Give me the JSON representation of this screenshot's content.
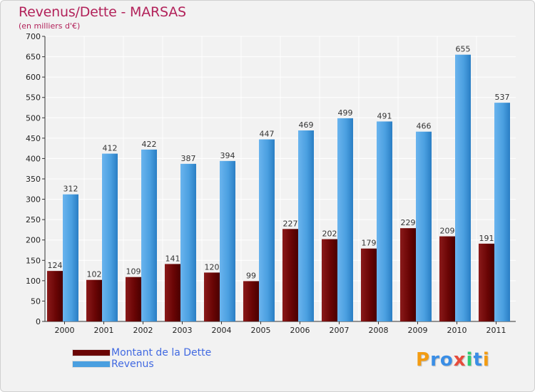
{
  "header": {
    "title": "Revenus/Dette - MARSAS",
    "subtitle": "(en milliers d'€)"
  },
  "chart_data": {
    "type": "bar",
    "title": "Revenus/Dette - MARSAS",
    "subtitle": "(en milliers d'€)",
    "categories": [
      "2000",
      "2001",
      "2002",
      "2003",
      "2004",
      "2005",
      "2006",
      "2007",
      "2008",
      "2009",
      "2010",
      "2011"
    ],
    "series": [
      {
        "name": "Montant de la Dette",
        "color": "#7a0a0a",
        "values": [
          124,
          102,
          109,
          141,
          120,
          99,
          227,
          202,
          179,
          229,
          209,
          191
        ]
      },
      {
        "name": "Revenus",
        "color": "#4a9fe0",
        "values": [
          312,
          412,
          422,
          387,
          394,
          447,
          469,
          499,
          491,
          466,
          655,
          537
        ]
      }
    ],
    "ylim": [
      0,
      700
    ],
    "ytick_step": 50,
    "grid": true,
    "legend_position": "bottom-left",
    "data_labels": true
  },
  "legend": {
    "items": [
      {
        "label": "Montant de la Dette",
        "color": "#6a0505",
        "text_color": "#4169e1"
      },
      {
        "label": "Revenus",
        "color": "#4a9fe0",
        "text_color": "#4169e1"
      }
    ]
  },
  "logo": {
    "letters": [
      {
        "ch": "P",
        "color": "#f39c12"
      },
      {
        "ch": "r",
        "color": "#3a8ee6"
      },
      {
        "ch": "o",
        "color": "#3a8ee6"
      },
      {
        "ch": "x",
        "color": "#e74c3c"
      },
      {
        "ch": "i",
        "color": "#2ecc71"
      },
      {
        "ch": "t",
        "color": "#3a8ee6"
      },
      {
        "ch": "i",
        "color": "#f39c12"
      }
    ]
  }
}
